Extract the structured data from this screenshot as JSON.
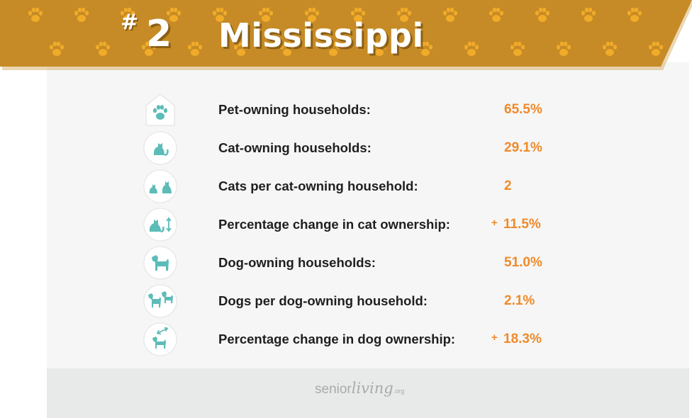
{
  "header": {
    "rank_hash": "#",
    "rank_number": "2",
    "state_name": "Mississippi",
    "colors": {
      "banner": "#c68b26",
      "paw": "#f0ab29",
      "title": "#ffffff"
    },
    "pattern_icon": "paw-print-icon"
  },
  "stats": [
    {
      "icon": "house-paw-icon",
      "label": "Pet-owning households:",
      "sign": "",
      "value": "65.5%"
    },
    {
      "icon": "cat-icon",
      "label": "Cat-owning households:",
      "sign": "",
      "value": "29.1%"
    },
    {
      "icon": "two-cats-icon",
      "label": "Cats per cat-owning household:",
      "sign": "",
      "value": "2"
    },
    {
      "icon": "cat-change-icon",
      "label": "Percentage change in cat ownership:",
      "sign": "+",
      "value": "11.5%"
    },
    {
      "icon": "dog-icon",
      "label": "Dog-owning households:",
      "sign": "",
      "value": "51.0%"
    },
    {
      "icon": "two-dogs-icon",
      "label": "Dogs per dog-owning household:",
      "sign": "",
      "value": "2.1%"
    },
    {
      "icon": "dog-change-icon",
      "label": "Percentage change in dog ownership:",
      "sign": "+",
      "value": "18.3%"
    }
  ],
  "footer": {
    "logo_part1": "senior",
    "logo_part2": "living",
    "logo_part3": ".org"
  },
  "colors": {
    "accent": "#ef8a2a",
    "icon_teal": "#5cbcb8",
    "icon_bg": "#ffffff",
    "label": "#1f1f1f"
  }
}
